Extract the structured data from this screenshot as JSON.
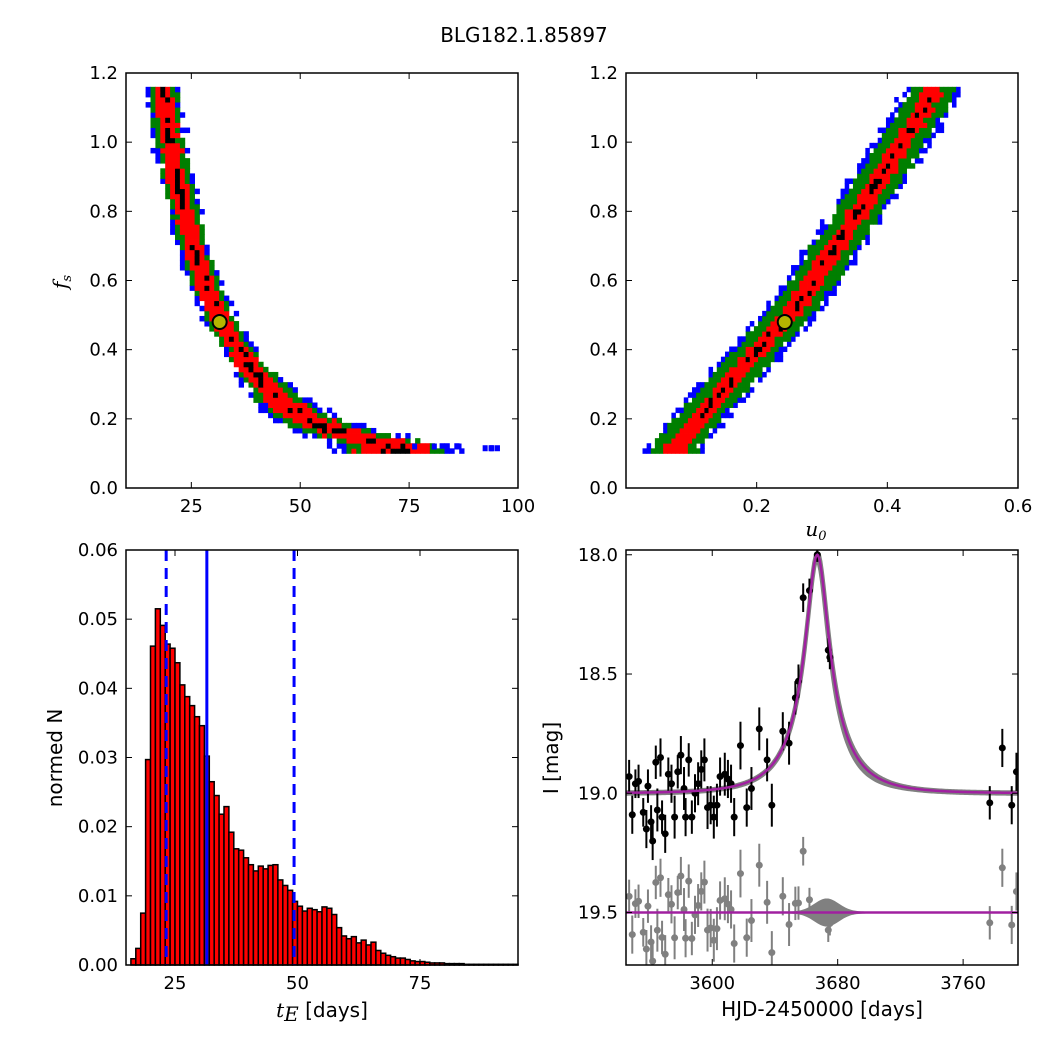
{
  "title": "BLG182.1.85897",
  "chart_data": [
    {
      "panel": "top-left",
      "type": "heatmap",
      "xlim": [
        10,
        100
      ],
      "ylim": [
        0.0,
        1.2
      ],
      "xticks": [
        25,
        50,
        75,
        100
      ],
      "yticks": [
        0.0,
        0.2,
        0.4,
        0.6,
        0.8,
        1.0,
        1.2
      ],
      "xtick_labels": [
        "25",
        "50",
        "75",
        "100"
      ],
      "ytick_labels": [
        "0.0",
        "0.2",
        "0.4",
        "0.6",
        "0.8",
        "1.0",
        "1.2"
      ],
      "xlabel": "",
      "ylabel": "f_s",
      "ylabel_main": "f",
      "ylabel_sub": "s",
      "colors": {
        "outer": "#0000ff",
        "middle": "#007f00",
        "inner": "#ff0000",
        "core": "#000000",
        "marker_fill": "#b5b500",
        "marker_edge": "#000000"
      },
      "ridge": [
        {
          "x": 18.5,
          "y": 1.15
        },
        {
          "x": 19.5,
          "y": 1.05
        },
        {
          "x": 21,
          "y": 0.95
        },
        {
          "x": 22,
          "y": 0.88
        },
        {
          "x": 23.5,
          "y": 0.8
        },
        {
          "x": 25,
          "y": 0.72
        },
        {
          "x": 26.5,
          "y": 0.65
        },
        {
          "x": 28,
          "y": 0.6
        },
        {
          "x": 30,
          "y": 0.54
        },
        {
          "x": 32,
          "y": 0.48
        },
        {
          "x": 35,
          "y": 0.42
        },
        {
          "x": 38,
          "y": 0.36
        },
        {
          "x": 42,
          "y": 0.3
        },
        {
          "x": 46,
          "y": 0.25
        },
        {
          "x": 50,
          "y": 0.21
        },
        {
          "x": 55,
          "y": 0.18
        },
        {
          "x": 60,
          "y": 0.16
        },
        {
          "x": 66,
          "y": 0.14
        },
        {
          "x": 72,
          "y": 0.12
        }
      ],
      "band_halfwidth_x": {
        "outer": 5.0,
        "middle": 3.8,
        "inner": 2.6,
        "core": 0.9
      },
      "outer_tail": [
        {
          "x": 80,
          "y": 0.12
        },
        {
          "x": 95,
          "y": 0.115
        }
      ],
      "best_fit": {
        "x": 31.5,
        "y": 0.48
      }
    },
    {
      "panel": "top-right",
      "type": "heatmap",
      "xlim": [
        0.0,
        0.6
      ],
      "ylim": [
        0.0,
        1.2
      ],
      "xticks": [
        0.2,
        0.4,
        0.6
      ],
      "yticks": [
        0.0,
        0.2,
        0.4,
        0.6,
        0.8,
        1.0,
        1.2
      ],
      "xtick_labels": [
        "0.2",
        "0.4",
        "0.6"
      ],
      "ytick_labels": [
        "0.0",
        "0.2",
        "0.4",
        "0.6",
        "0.8",
        "1.0",
        "1.2"
      ],
      "xlabel": "u_0",
      "xlabel_main": "u",
      "xlabel_sub": "0",
      "ylabel": "",
      "ridge": [
        {
          "x": 0.075,
          "y": 0.12
        },
        {
          "x": 0.12,
          "y": 0.22
        },
        {
          "x": 0.17,
          "y": 0.33
        },
        {
          "x": 0.21,
          "y": 0.42
        },
        {
          "x": 0.245,
          "y": 0.49
        },
        {
          "x": 0.28,
          "y": 0.58
        },
        {
          "x": 0.32,
          "y": 0.7
        },
        {
          "x": 0.36,
          "y": 0.81
        },
        {
          "x": 0.4,
          "y": 0.93
        },
        {
          "x": 0.44,
          "y": 1.05
        },
        {
          "x": 0.47,
          "y": 1.15
        }
      ],
      "band_halfwidth_x": {
        "outer": 0.045,
        "middle": 0.035,
        "inner": 0.016,
        "core": 0.004
      },
      "best_fit": {
        "x": 0.243,
        "y": 0.48
      }
    },
    {
      "panel": "bottom-left",
      "type": "bar",
      "xlim": [
        15,
        95
      ],
      "ylim": [
        0.0,
        0.06
      ],
      "xticks": [
        25,
        50,
        75
      ],
      "yticks": [
        0.0,
        0.01,
        0.02,
        0.03,
        0.04,
        0.05,
        0.06
      ],
      "xtick_labels": [
        "25",
        "50",
        "75"
      ],
      "ytick_labels": [
        "0.00",
        "0.01",
        "0.02",
        "0.03",
        "0.04",
        "0.05",
        "0.06"
      ],
      "xlabel": "t_E [days]",
      "xlabel_main": "t",
      "xlabel_sub": "E",
      "xlabel_rest": " [days]",
      "ylabel": "normed N",
      "bar_width": 1.0,
      "bar_color": "#ff0000",
      "bins_start": 16,
      "values": [
        0.0009,
        0.0024,
        0.0075,
        0.0297,
        0.0461,
        0.0515,
        0.0491,
        0.0464,
        0.0458,
        0.0437,
        0.0405,
        0.0388,
        0.0375,
        0.0359,
        0.0346,
        0.0302,
        0.0265,
        0.0245,
        0.0218,
        0.0229,
        0.0192,
        0.0168,
        0.0166,
        0.0155,
        0.0145,
        0.0136,
        0.0143,
        0.0139,
        0.0144,
        0.0145,
        0.0123,
        0.0115,
        0.0108,
        0.0092,
        0.0085,
        0.0078,
        0.0082,
        0.008,
        0.0077,
        0.0084,
        0.0082,
        0.0073,
        0.0054,
        0.0042,
        0.0038,
        0.0041,
        0.0032,
        0.0036,
        0.0029,
        0.0033,
        0.0021,
        0.0017,
        0.0014,
        0.0012,
        0.001,
        0.001,
        0.0008,
        0.0006,
        0.0005,
        0.0005,
        0.0004,
        0.0003,
        0.0003,
        0.0003,
        0.0002,
        0.0002,
        0.0002,
        0.0002,
        0.0001,
        0.0001,
        0.0001,
        0.0001,
        0.0001,
        0.0001,
        0.0001,
        0.0001,
        0.0001,
        0.0001,
        0.0001
      ],
      "median_line": 31.5,
      "bound_lines": [
        23.2,
        49.3
      ],
      "line_color": "#0000ff"
    },
    {
      "panel": "bottom-right",
      "type": "scatter",
      "xlim": [
        3545,
        3795
      ],
      "ylim": [
        19.72,
        17.98
      ],
      "xticks": [
        3600,
        3680,
        3760
      ],
      "yticks": [
        18.0,
        18.5,
        19.0,
        19.5
      ],
      "xtick_labels": [
        "3600",
        "3680",
        "3760"
      ],
      "ytick_labels": [
        "18.0",
        "18.5",
        "19.0",
        "19.5"
      ],
      "xlabel": "HJD-2450000 [days]",
      "ylabel": "I [mag]",
      "model": {
        "t0": 3667,
        "tE": 31.5,
        "u0": 0.243,
        "baseline": 19.0,
        "peak": 18.0
      },
      "residual_offset": 19.5,
      "colors": {
        "data": "#000000",
        "residual": "#808080",
        "model": "#a020a0",
        "model_band": "#808080"
      },
      "observations": [
        {
          "t": 3547,
          "mag": 18.93,
          "err": 0.07
        },
        {
          "t": 3549,
          "mag": 19.09,
          "err": 0.08
        },
        {
          "t": 3551,
          "mag": 18.96,
          "err": 0.06
        },
        {
          "t": 3553,
          "mag": 18.95,
          "err": 0.07
        },
        {
          "t": 3556,
          "mag": 19.08,
          "err": 0.06
        },
        {
          "t": 3558,
          "mag": 19.15,
          "err": 0.08
        },
        {
          "t": 3559,
          "mag": 18.97,
          "err": 0.07
        },
        {
          "t": 3561,
          "mag": 19.12,
          "err": 0.07
        },
        {
          "t": 3562,
          "mag": 19.2,
          "err": 0.08
        },
        {
          "t": 3564,
          "mag": 18.87,
          "err": 0.07
        },
        {
          "t": 3565,
          "mag": 19.07,
          "err": 0.09
        },
        {
          "t": 3567,
          "mag": 18.85,
          "err": 0.08
        },
        {
          "t": 3568,
          "mag": 19.1,
          "err": 0.07
        },
        {
          "t": 3570,
          "mag": 19.17,
          "err": 0.08
        },
        {
          "t": 3572,
          "mag": 18.92,
          "err": 0.07
        },
        {
          "t": 3574,
          "mag": 18.96,
          "err": 0.08
        },
        {
          "t": 3576,
          "mag": 19.1,
          "err": 0.09
        },
        {
          "t": 3578,
          "mag": 18.91,
          "err": 0.07
        },
        {
          "t": 3580,
          "mag": 18.84,
          "err": 0.08
        },
        {
          "t": 3582,
          "mag": 18.98,
          "err": 0.09
        },
        {
          "t": 3583,
          "mag": 19.1,
          "err": 0.08
        },
        {
          "t": 3585,
          "mag": 18.86,
          "err": 0.07
        },
        {
          "t": 3587,
          "mag": 19.1,
          "err": 0.07
        },
        {
          "t": 3589,
          "mag": 19.0,
          "err": 0.08
        },
        {
          "t": 3591,
          "mag": 18.96,
          "err": 0.09
        },
        {
          "t": 3593,
          "mag": 18.9,
          "err": 0.08
        },
        {
          "t": 3595,
          "mag": 18.86,
          "err": 0.09
        },
        {
          "t": 3597,
          "mag": 19.06,
          "err": 0.09
        },
        {
          "t": 3599,
          "mag": 19.05,
          "err": 0.08
        },
        {
          "t": 3601,
          "mag": 19.1,
          "err": 0.09
        },
        {
          "t": 3603,
          "mag": 19.05,
          "err": 0.09
        },
        {
          "t": 3605,
          "mag": 18.93,
          "err": 0.08
        },
        {
          "t": 3608,
          "mag": 18.92,
          "err": 0.09
        },
        {
          "t": 3610,
          "mag": 18.94,
          "err": 0.08
        },
        {
          "t": 3612,
          "mag": 18.96,
          "err": 0.08
        },
        {
          "t": 3614,
          "mag": 19.1,
          "err": 0.08
        },
        {
          "t": 3618,
          "mag": 18.8,
          "err": 0.1
        },
        {
          "t": 3622,
          "mag": 19.06,
          "err": 0.08
        },
        {
          "t": 3625,
          "mag": 18.98,
          "err": 0.09
        },
        {
          "t": 3630,
          "mag": 18.73,
          "err": 0.09
        },
        {
          "t": 3635,
          "mag": 18.86,
          "err": 0.09
        },
        {
          "t": 3638,
          "mag": 19.05,
          "err": 0.09
        },
        {
          "t": 3645,
          "mag": 18.74,
          "err": 0.08
        },
        {
          "t": 3649,
          "mag": 18.79,
          "err": 0.09
        },
        {
          "t": 3653,
          "mag": 18.6,
          "err": 0.07
        },
        {
          "t": 3655,
          "mag": 18.53,
          "err": 0.07
        },
        {
          "t": 3658,
          "mag": 18.18,
          "err": 0.06
        },
        {
          "t": 3662,
          "mag": 18.15,
          "err": 0.05
        },
        {
          "t": 3667,
          "mag": 18.0,
          "err": 0.03
        },
        {
          "t": 3674,
          "mag": 18.4,
          "err": 0.05
        },
        {
          "t": 3675,
          "mag": 18.43,
          "err": 0.05
        },
        {
          "t": 3777,
          "mag": 19.04,
          "err": 0.07
        },
        {
          "t": 3785,
          "mag": 18.81,
          "err": 0.08
        },
        {
          "t": 3791,
          "mag": 19.05,
          "err": 0.08
        },
        {
          "t": 3794,
          "mag": 18.91,
          "err": 0.08
        }
      ]
    }
  ]
}
